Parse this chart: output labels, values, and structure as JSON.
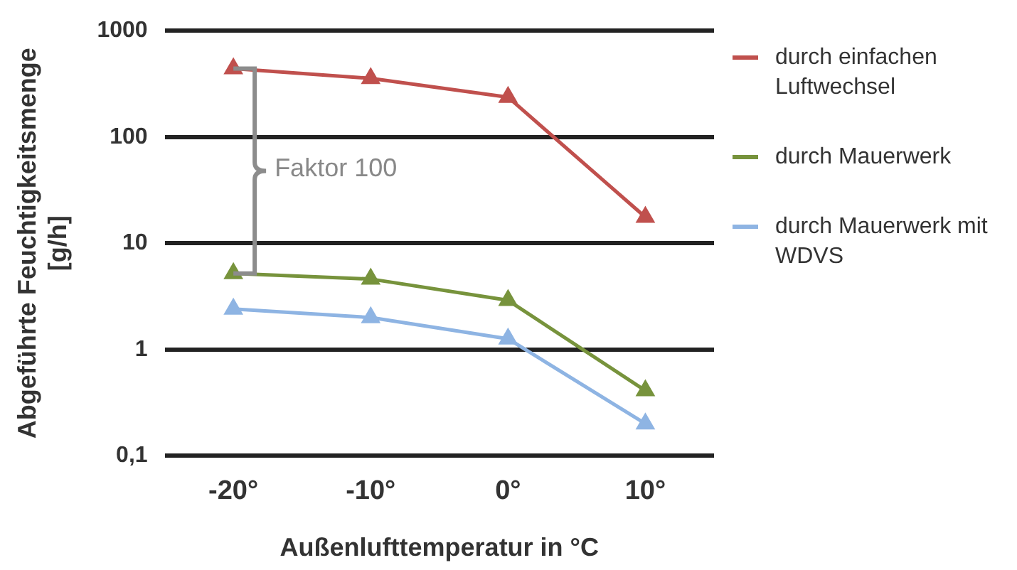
{
  "chart_data": {
    "type": "line",
    "xlabel": "Außenlufttemperatur in °C",
    "ylabel": "Abgeführte Feuchtigkeitsmenge [g/h]",
    "categories": [
      "-20°",
      "-10°",
      "0°",
      "10°"
    ],
    "series": [
      {
        "name": "durch einfachen Luftwechsel",
        "color": "#c0504d",
        "values": [
          440,
          356,
          237,
          17.6
        ]
      },
      {
        "name": "durch Mauerwerk",
        "color": "#77933c",
        "values": [
          5.2,
          4.6,
          2.9,
          0.41
        ]
      },
      {
        "name": "durch Mauerwerk mit WDVS",
        "color": "#8eb4e3",
        "values": [
          2.4,
          2.0,
          1.26,
          0.2
        ]
      }
    ],
    "log": "y",
    "ylim": [
      0.1,
      1000
    ],
    "yticks": [
      {
        "value": 0.1,
        "label": "0,1"
      },
      1,
      10,
      100,
      1000
    ],
    "grid": "y",
    "legend": "right",
    "marker": "triangle",
    "line_style": "solid",
    "annotations": [
      "Faktor 100"
    ]
  }
}
